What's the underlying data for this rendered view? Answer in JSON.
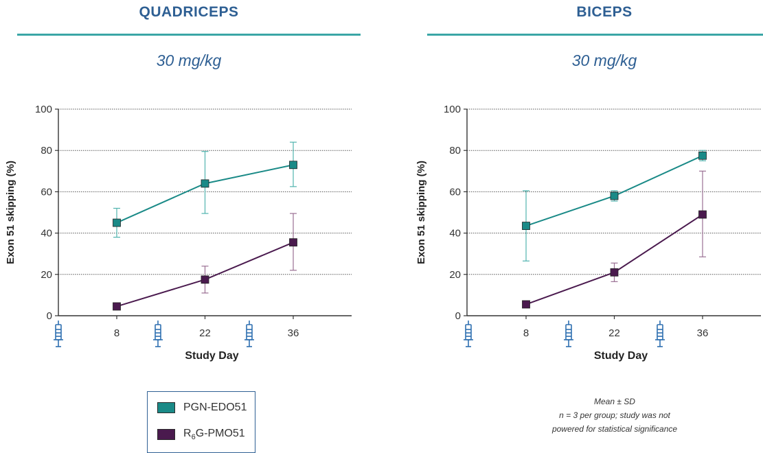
{
  "panels": [
    {
      "title": "QUADRICEPS",
      "dose": "30 mg/kg",
      "chart_data": {
        "type": "line",
        "title": "QUADRICEPS",
        "subtitle": "30 mg/kg",
        "xlabel": "Study Day",
        "ylabel": "Exon 51 skipping (%)",
        "x": [
          8,
          22,
          36
        ],
        "x_ticks": [
          "8",
          "22",
          "36"
        ],
        "y_ticks": [
          "0",
          "20",
          "40",
          "60",
          "80",
          "100"
        ],
        "ylim": [
          0,
          100
        ],
        "grid": "horizontal dotted",
        "dosing_icon": "syringe-icon",
        "series": [
          {
            "name": "PGN-EDO51",
            "values": [
              45,
              64,
              73
            ],
            "error_low": [
              38,
              49.5,
              62.5
            ],
            "error_high": [
              52,
              79.5,
              84
            ]
          },
          {
            "name": "R6G-PMO51",
            "values": [
              4.5,
              17.5,
              35.5
            ],
            "error_low": [
              3.5,
              11,
              22
            ],
            "error_high": [
              5.5,
              24,
              49.5
            ]
          }
        ]
      }
    },
    {
      "title": "BICEPS",
      "dose": "30 mg/kg",
      "chart_data": {
        "type": "line",
        "title": "BICEPS",
        "subtitle": "30 mg/kg",
        "xlabel": "Study Day",
        "ylabel": "Exon 51 skipping (%)",
        "x": [
          8,
          22,
          36
        ],
        "x_ticks": [
          "8",
          "22",
          "36"
        ],
        "y_ticks": [
          "0",
          "20",
          "40",
          "60",
          "80",
          "100"
        ],
        "ylim": [
          0,
          100
        ],
        "grid": "horizontal dotted",
        "dosing_icon": "syringe-icon",
        "series": [
          {
            "name": "PGN-EDO51",
            "values": [
              43.5,
              58,
              77.5
            ],
            "error_low": [
              26.5,
              55.5,
              75
            ],
            "error_high": [
              60.5,
              60.5,
              80
            ]
          },
          {
            "name": "R6G-PMO51",
            "values": [
              5.5,
              21,
              49
            ],
            "error_low": [
              4,
              16.5,
              28.5
            ],
            "error_high": [
              7,
              25.5,
              70
            ]
          }
        ]
      }
    }
  ],
  "legend": [
    {
      "label": "PGN-EDO51",
      "color": "#1a8a87"
    },
    {
      "label_main": "R",
      "label_sub": "6",
      "label_rest": "G-PMO51",
      "color": "#4a1a4e"
    }
  ],
  "colors": {
    "teal": "#1a8a87",
    "teal_err": "#4fb3ae",
    "purple": "#4a1a4e",
    "purple_err": "#9a6f93",
    "title_blue": "#2e5f93",
    "rule": "#3aa6a6",
    "syringe": "#2e6fb0"
  },
  "note": {
    "line1": "Mean ± SD",
    "line2": "n = 3 per group; study was not",
    "line3": "powered for statistical significance"
  }
}
